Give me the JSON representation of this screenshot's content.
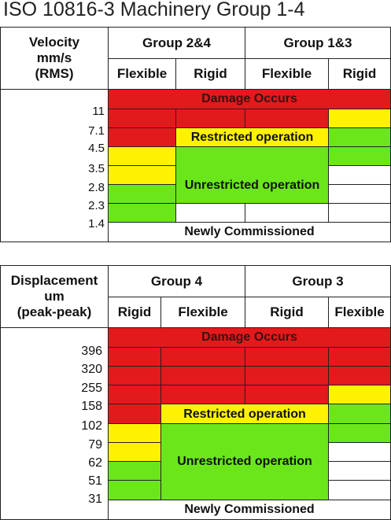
{
  "title": "ISO 10816-3 Machinery Group 1-4",
  "velocity": {
    "axis_header": [
      "Velocity",
      "mm/s",
      "(RMS)"
    ],
    "group_left": "Group 2&4",
    "group_right": "Group 1&3",
    "cols": [
      "Flexible",
      "Rigid",
      "Flexible",
      "Rigid"
    ],
    "ticks": [
      "11",
      "7.1",
      "4.5",
      "3.5",
      "2.8",
      "2.3",
      "1.4"
    ],
    "zones": {
      "damage": "Damage Occurs",
      "restricted": "Restricted operation",
      "unrestricted": "Unrestricted operation",
      "new": "Newly Commissioned"
    }
  },
  "displacement": {
    "axis_header": [
      "Displacement",
      "um",
      "(peak-peak)"
    ],
    "group_left": "Group 4",
    "group_right": "Group 3",
    "cols": [
      "Rigid",
      "Flexible",
      "Rigid",
      "Flexible"
    ],
    "ticks": [
      "396",
      "320",
      "255",
      "158",
      "102",
      "79",
      "62",
      "51",
      "31"
    ],
    "zones": {
      "damage": "Damage Occurs",
      "restricted": "Restricted operation",
      "unrestricted": "Unrestricted operation",
      "new": "Newly Commissioned"
    }
  },
  "colors": {
    "damage": "#e4191c",
    "restricted": "#fff200",
    "unrestricted": "#6be61b",
    "new": "#ffffff"
  }
}
